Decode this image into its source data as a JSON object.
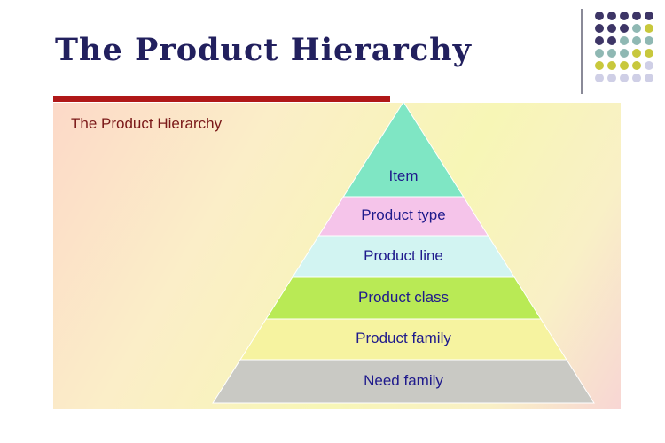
{
  "slide": {
    "title": "The Product Hierarchy",
    "caption": "The Product Hierarchy"
  },
  "pyramid": {
    "levels": [
      {
        "label": "Item",
        "color": "#7fe6c4"
      },
      {
        "label": "Product type",
        "color": "#f5c4ea"
      },
      {
        "label": "Product line",
        "color": "#d2f4f2"
      },
      {
        "label": "Product class",
        "color": "#b9ea55"
      },
      {
        "label": "Product family",
        "color": "#f6f3a0"
      },
      {
        "label": "Need family",
        "color": "#c9c9c4"
      }
    ]
  },
  "decoration": {
    "dot_colors": [
      "#3d3566",
      "#8fb8b3",
      "#c8c83c",
      "#cfcfe6"
    ]
  }
}
